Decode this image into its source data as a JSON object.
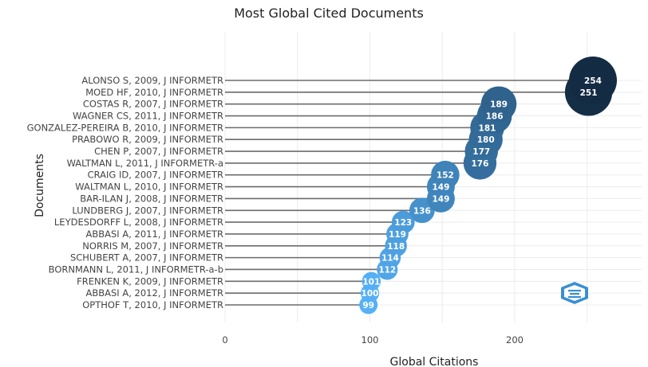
{
  "chart_data": {
    "type": "scatter",
    "title": "Most Global Cited Documents",
    "xlabel": "Global Citations",
    "ylabel": "Documents",
    "xlim": [
      0,
      285
    ],
    "xticks": [
      "0",
      "100",
      "200"
    ],
    "xtick_values": [
      0,
      100,
      200
    ],
    "grid": true,
    "legend": "none",
    "color_low": "#56b1f7",
    "color_high": "#132b43",
    "categories": [
      "ALONSO S, 2009, J INFORMETR",
      "MOED HF, 2010, J INFORMETR",
      "COSTAS R, 2007, J INFORMETR",
      "WAGNER CS, 2011, J INFORMETR",
      "GONZALEZ-PEREIRA B, 2010, J INFORMETR",
      "PRABOWO R, 2009, J INFORMETR",
      "CHEN P, 2007, J INFORMETR",
      "WALTMAN L, 2011, J INFORMETR-a",
      "CRAIG ID, 2007, J INFORMETR",
      "WALTMAN L, 2010, J INFORMETR",
      "BAR-ILAN J, 2008, J INFORMETR",
      "LUNDBERG J, 2007, J INFORMETR",
      "LEYDESDORFF L, 2008, J INFORMETR",
      "ABBASI A, 2011, J INFORMETR",
      "NORRIS M, 2007, J INFORMETR",
      "SCHUBERT A, 2007, J INFORMETR",
      "BORNMANN L, 2011, J INFORMETR-a-b",
      "FRENKEN K, 2009, J INFORMETR",
      "ABBASI A, 2012, J INFORMETR",
      "OPTHOF T, 2010, J INFORMETR"
    ],
    "values": [
      254,
      251,
      189,
      186,
      181,
      180,
      177,
      176,
      152,
      149,
      149,
      136,
      123,
      119,
      118,
      114,
      112,
      101,
      100,
      99
    ],
    "value_labels": [
      "254",
      "251",
      "189",
      "186",
      "181",
      "180",
      "177",
      "176",
      "152",
      "149",
      "149",
      "136",
      "123",
      "119",
      "118",
      "114",
      "112",
      "101",
      "100",
      "99"
    ]
  },
  "logo_icon": "bibliometrix-logo-icon"
}
